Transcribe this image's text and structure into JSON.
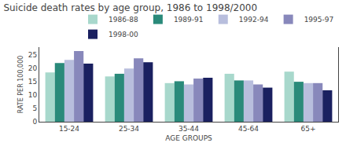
{
  "chart_data": {
    "type": "bar",
    "title": "Suicide death rates by age group, 1986 to 1998/2000",
    "xlabel": "AGE GROUPS",
    "ylabel": "RATE PER 100,000",
    "categories": [
      "15-24",
      "25-34",
      "35-44",
      "45-64",
      "65+"
    ],
    "series": [
      {
        "name": "1986-88",
        "color": "#a8d8cc",
        "values": [
          18.5,
          17.0,
          14.5,
          18.0,
          18.8
        ]
      },
      {
        "name": "1989-91",
        "color": "#2a8a7a",
        "values": [
          22.0,
          18.0,
          15.2,
          15.5,
          15.0
        ]
      },
      {
        "name": "1992-94",
        "color": "#b8bedd",
        "values": [
          23.2,
          20.0,
          14.0,
          15.5,
          14.5
        ]
      },
      {
        "name": "1995-97",
        "color": "#8888bb",
        "values": [
          26.5,
          23.8,
          16.2,
          14.0,
          14.5
        ]
      },
      {
        "name": "1998-00",
        "color": "#1a2060",
        "values": [
          21.8,
          22.3,
          16.5,
          12.8,
          11.8
        ]
      }
    ],
    "ylim": [
      0,
      28
    ],
    "yticks": [
      0,
      5,
      10,
      15,
      20,
      25
    ],
    "grid": false,
    "legend": "upper right"
  }
}
